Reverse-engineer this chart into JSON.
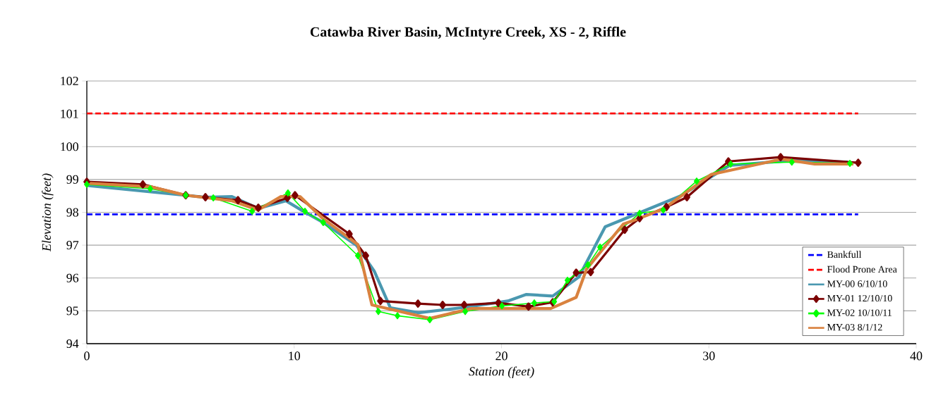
{
  "chart_data": {
    "type": "line",
    "title": "Catawba River Basin, McIntyre Creek, XS - 2, Riffle",
    "xlabel": "Station (feet)",
    "ylabel": "Elevation (feet)",
    "xlim": [
      0,
      40
    ],
    "xticks": [
      0,
      10,
      20,
      30,
      40
    ],
    "ylim": [
      94,
      102
    ],
    "yticks": [
      94,
      95,
      96,
      97,
      98,
      99,
      100,
      101,
      102
    ],
    "grid": "y",
    "legend": "bottom right",
    "line_style": "solid",
    "ref_lines": [
      {
        "axis": "y",
        "value": 97.94,
        "label": "Bankfull",
        "color": "#0000ff",
        "line_style": "dashed"
      },
      {
        "axis": "y",
        "value": 101.01,
        "label": "Flood Prone Area",
        "color": "#ff0000",
        "line_style": "dashed"
      }
    ],
    "series": [
      {
        "name": "MY-00 6/10/10",
        "color": "#4a98b0",
        "marker": "none",
        "x": [
          0,
          5.7,
          7.0,
          8.27,
          9.6,
          10.45,
          11.4,
          13.0,
          13.86,
          14.64,
          16.0,
          18.28,
          20.3,
          21.2,
          22.47,
          23.73,
          25.0,
          26.66,
          28.63,
          31.0,
          34.0,
          36.7
        ],
        "values": [
          98.82,
          98.46,
          98.48,
          98.12,
          98.35,
          98.03,
          97.69,
          97.0,
          96.21,
          95.09,
          94.94,
          95.11,
          95.3,
          95.5,
          95.45,
          96.03,
          97.56,
          97.99,
          98.5,
          99.43,
          99.58,
          99.53
        ]
      },
      {
        "name": "MY-01 12/10/10",
        "color": "#7b0000",
        "marker": "diamond",
        "x": [
          0,
          2.7,
          4.77,
          5.72,
          7.29,
          8.27,
          9.67,
          10.04,
          12.66,
          13.45,
          14.16,
          15.97,
          17.16,
          18.2,
          19.85,
          21.3,
          22.47,
          23.6,
          24.3,
          25.94,
          26.66,
          27.95,
          28.94,
          30.94,
          33.46,
          37.2
        ],
        "values": [
          98.93,
          98.85,
          98.52,
          98.46,
          98.37,
          98.14,
          98.44,
          98.52,
          97.34,
          96.68,
          95.3,
          95.22,
          95.18,
          95.18,
          95.24,
          95.13,
          95.26,
          96.16,
          96.18,
          97.47,
          97.82,
          98.16,
          98.46,
          99.55,
          99.68,
          99.51
        ]
      },
      {
        "name": "MY-02 10/10/11",
        "color": "#00ff00",
        "marker": "diamond",
        "x": [
          0,
          3.06,
          4.77,
          6.1,
          7.97,
          9.7,
          10.52,
          11.4,
          13.07,
          14.06,
          14.98,
          16.54,
          18.25,
          20.02,
          21.58,
          22.54,
          23.18,
          24.17,
          24.75,
          26.66,
          27.8,
          29.41,
          31.05,
          34.0,
          36.8
        ],
        "values": [
          98.85,
          98.72,
          98.52,
          98.44,
          98.03,
          98.59,
          98.03,
          97.69,
          96.68,
          94.98,
          94.85,
          94.73,
          94.98,
          95.15,
          95.24,
          95.28,
          95.93,
          96.4,
          96.94,
          97.97,
          98.07,
          98.95,
          99.47,
          99.53,
          99.49
        ]
      },
      {
        "name": "MY-03 8/1/12",
        "color": "#d9823f",
        "marker": "none",
        "x": [
          0,
          3.06,
          4.77,
          7.0,
          8.27,
          9.36,
          10.28,
          11.37,
          13.07,
          13.75,
          16.54,
          18.55,
          22.37,
          23.6,
          24.1,
          25.87,
          26.66,
          27.8,
          30.1,
          33.5,
          35.1,
          36.97
        ],
        "values": [
          98.89,
          98.78,
          98.52,
          98.35,
          98.07,
          98.48,
          98.48,
          97.82,
          97.02,
          95.18,
          94.77,
          95.07,
          95.07,
          95.41,
          96.27,
          97.64,
          97.82,
          98.1,
          99.15,
          99.62,
          99.47,
          99.47
        ]
      }
    ]
  }
}
